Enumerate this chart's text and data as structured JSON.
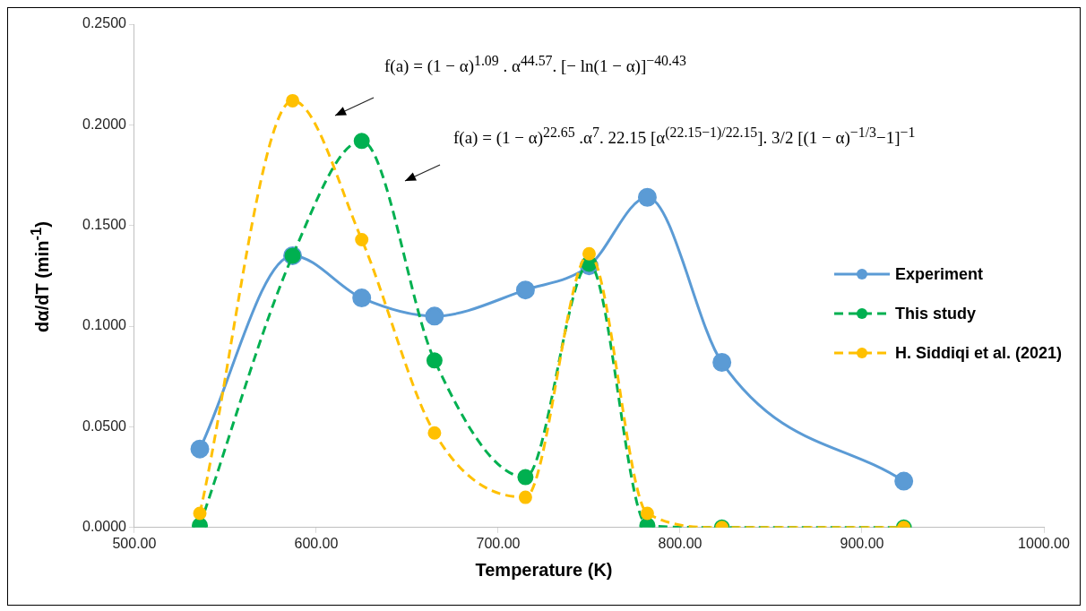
{
  "chart_data": {
    "type": "line",
    "xlabel": "Temperature (K)",
    "ylabel": "dα/dT (min$^{-1}$)",
    "xlim": [
      500,
      1000
    ],
    "xticks": [
      {
        "value": 500,
        "label": "500.00"
      },
      {
        "value": 600,
        "label": "600.00"
      },
      {
        "value": 700,
        "label": "700.00"
      },
      {
        "value": 800,
        "label": "800.00"
      },
      {
        "value": 900,
        "label": "900.00"
      },
      {
        "value": 1000,
        "label": "1000.00"
      }
    ],
    "ylim": [
      0,
      0.25
    ],
    "yticks": [
      {
        "value": 0,
        "label": "0.0000"
      },
      {
        "value": 0.05,
        "label": "0.0500"
      },
      {
        "value": 0.1,
        "label": "0.1000"
      },
      {
        "value": 0.15,
        "label": "0.1500"
      },
      {
        "value": 0.2,
        "label": "0.2000"
      },
      {
        "value": 0.25,
        "label": "0.2500"
      }
    ],
    "series": [
      {
        "name": "Experiment",
        "color": "#5b9bd5",
        "line_style": "solid",
        "x": [
          536,
          587,
          625,
          665,
          715,
          750,
          782,
          823,
          923
        ],
        "values": [
          0.039,
          0.135,
          0.114,
          0.105,
          0.118,
          0.13,
          0.164,
          0.082,
          0.023
        ]
      },
      {
        "name": "This study",
        "color": "#00b050",
        "line_style": "dashed",
        "x": [
          536,
          587,
          625,
          665,
          715,
          750,
          782,
          823,
          923
        ],
        "values": [
          0.001,
          0.135,
          0.192,
          0.083,
          0.025,
          0.131,
          0.001,
          0,
          0
        ]
      },
      {
        "name": "H. Siddiqi et al. (2021)",
        "color": "#ffc000",
        "line_style": "dashed",
        "x": [
          536,
          587,
          625,
          665,
          715,
          750,
          782,
          823,
          923
        ],
        "values": [
          0.007,
          0.212,
          0.143,
          0.047,
          0.015,
          0.136,
          0.007,
          0,
          0
        ]
      }
    ],
    "annotations": [
      "f(a) = (1 − α)$^{1.09}$ . α$^{44.57}$. [− ln(1 − α)]$^{−40.43}$",
      "f(a) = (1 − α)$^{22.65}$ .α$^{7}$. 22.15 [α$^{(22.15−1)/22.15}$]. 3/2 [(1 − α)$^{−1/3}$−1]$^{−1}$"
    ],
    "marker": "circle",
    "grid": false,
    "legend": "right"
  }
}
